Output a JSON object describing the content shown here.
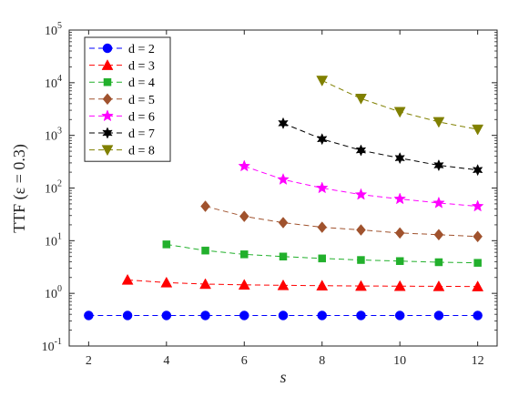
{
  "chart_data": {
    "type": "line",
    "xlabel": "s",
    "ylabel": "TTF (ε = 0.3)",
    "xlim": [
      1.5,
      12.5
    ],
    "ylim": [
      0.1,
      100000
    ],
    "yscale": "log",
    "x_ticks": [
      2,
      4,
      6,
      8,
      10,
      12
    ],
    "y_ticks": [
      {
        "value": 0.1,
        "base": "10",
        "exp": "-1"
      },
      {
        "value": 1,
        "base": "10",
        "exp": "0"
      },
      {
        "value": 10,
        "base": "10",
        "exp": "1"
      },
      {
        "value": 100,
        "base": "10",
        "exp": "2"
      },
      {
        "value": 1000,
        "base": "10",
        "exp": "3"
      },
      {
        "value": 10000,
        "base": "10",
        "exp": "4"
      },
      {
        "value": 100000,
        "base": "10",
        "exp": "5"
      }
    ],
    "grid": false,
    "legend_position": "top-left",
    "series": [
      {
        "name": "d = 2",
        "color": "#0000ff",
        "marker": "circle",
        "x": [
          2,
          3,
          4,
          5,
          6,
          7,
          8,
          9,
          10,
          11,
          12
        ],
        "y": [
          0.38,
          0.38,
          0.38,
          0.38,
          0.38,
          0.38,
          0.38,
          0.38,
          0.38,
          0.38,
          0.38
        ]
      },
      {
        "name": "d = 3",
        "color": "#ff0000",
        "marker": "triangle-up",
        "x": [
          3,
          4,
          5,
          6,
          7,
          8,
          9,
          10,
          11,
          12
        ],
        "y": [
          1.8,
          1.6,
          1.5,
          1.45,
          1.42,
          1.4,
          1.38,
          1.37,
          1.36,
          1.35
        ]
      },
      {
        "name": "d = 4",
        "color": "#22b02c",
        "marker": "square",
        "x": [
          4,
          5,
          6,
          7,
          8,
          9,
          10,
          11,
          12
        ],
        "y": [
          8.5,
          6.5,
          5.5,
          5.0,
          4.6,
          4.3,
          4.1,
          3.9,
          3.8
        ]
      },
      {
        "name": "d = 5",
        "color": "#a0522d",
        "marker": "diamond",
        "x": [
          5,
          6,
          7,
          8,
          9,
          10,
          11,
          12
        ],
        "y": [
          45,
          29,
          22,
          18,
          16,
          14,
          13,
          12
        ]
      },
      {
        "name": "d = 6",
        "color": "#ff00ff",
        "marker": "star5",
        "x": [
          6,
          7,
          8,
          9,
          10,
          11,
          12
        ],
        "y": [
          260,
          145,
          100,
          75,
          62,
          52,
          45
        ]
      },
      {
        "name": "d = 7",
        "color": "#000000",
        "marker": "star6",
        "x": [
          7,
          8,
          9,
          10,
          11,
          12
        ],
        "y": [
          1700,
          850,
          520,
          370,
          270,
          220
        ]
      },
      {
        "name": "d = 8",
        "color": "#808000",
        "marker": "triangle-down",
        "x": [
          8,
          9,
          10,
          11,
          12
        ],
        "y": [
          11000,
          5000,
          2800,
          1800,
          1300
        ]
      }
    ]
  }
}
